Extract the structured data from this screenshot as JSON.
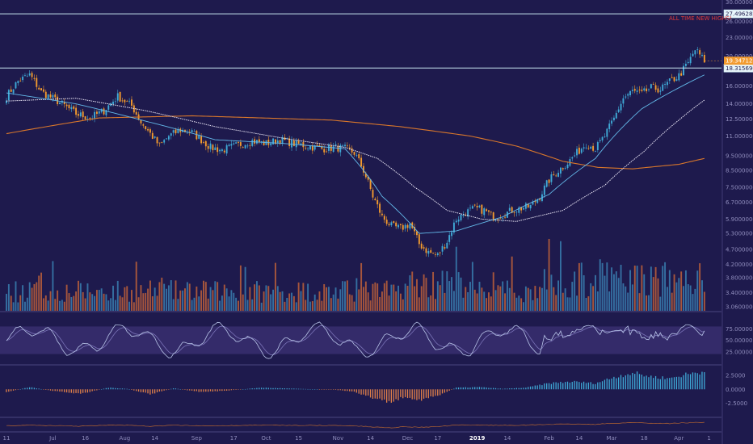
{
  "chart_data": {
    "type": "candlestick",
    "colors": {
      "background": "#1e1a4d",
      "up": "#3fa9d6",
      "down": "#f29a2e",
      "vol_up": "#3a7fb0",
      "vol_down": "#c0613a",
      "sma_fast": "#63b8e8",
      "sma_mid": "#e8e4f4",
      "sma_slow": "#d9772b",
      "level_line": "#c8e6f2",
      "stoch_k": "#b8c4e8",
      "stoch_d": "#7a73b8",
      "stoch_band": "#3a2f72",
      "hist_up": "#3fa9d6",
      "hist_down": "#e0804a"
    },
    "price_axis": {
      "scale": "log",
      "range": [
        2.95,
        30.5
      ],
      "ticks": [
        "30.0000000",
        "26.0000000",
        "23.0000000",
        "20.0000000",
        "16.0000000",
        "14.0000000",
        "12.5000000",
        "11.0000000",
        "9.5000000",
        "8.5000000",
        "7.5000000",
        "6.7000000",
        "5.9000000",
        "5.3000000",
        "4.7000000",
        "4.2000000",
        "3.8000000",
        "3.4000000",
        "3.0600000"
      ],
      "tick_values": [
        30.0,
        26.0,
        23.0,
        20.0,
        16.0,
        14.0,
        12.5,
        11.0,
        9.5,
        8.5,
        7.5,
        6.7,
        5.9,
        5.3,
        4.7,
        4.2,
        3.8,
        3.4,
        3.06
      ]
    },
    "levels": [
      {
        "value": 27.496282,
        "label": "27.4962820",
        "style": "outline"
      },
      {
        "value": 18.3156906,
        "label": "18.3156906",
        "style": "outline"
      }
    ],
    "last_price": {
      "value": 19.3471258,
      "label": "19.3471258"
    },
    "annotation": "ALL TIME NEW HIGHS!",
    "x_axis": {
      "labels": [
        {
          "text": "11",
          "index": 0
        },
        {
          "text": "Jul",
          "index": 20
        },
        {
          "text": "16",
          "index": 34
        },
        {
          "text": "Aug",
          "index": 51
        },
        {
          "text": "14",
          "index": 64
        },
        {
          "text": "Sep",
          "index": 82
        },
        {
          "text": "17",
          "index": 98
        },
        {
          "text": "Oct",
          "index": 112
        },
        {
          "text": "15",
          "index": 126
        },
        {
          "text": "Nov",
          "index": 143
        },
        {
          "text": "14",
          "index": 157
        },
        {
          "text": "Dec",
          "index": 173
        },
        {
          "text": "17",
          "index": 186
        },
        {
          "text": "2019",
          "index": 203,
          "bold": true
        },
        {
          "text": "14",
          "index": 216
        },
        {
          "text": "Feb",
          "index": 234
        },
        {
          "text": "14",
          "index": 247
        },
        {
          "text": "Mar",
          "index": 261
        },
        {
          "text": "18",
          "index": 275
        },
        {
          "text": "Apr",
          "index": 290
        },
        {
          "text": "1",
          "index": 303
        }
      ]
    },
    "close_anchors": [
      [
        0,
        14.8
      ],
      [
        5,
        16.6
      ],
      [
        10,
        17.4
      ],
      [
        15,
        15.3
      ],
      [
        22,
        14.3
      ],
      [
        30,
        13.0
      ],
      [
        36,
        12.6
      ],
      [
        42,
        13.3
      ],
      [
        48,
        14.8
      ],
      [
        54,
        13.8
      ],
      [
        58,
        12.2
      ],
      [
        62,
        11.2
      ],
      [
        66,
        10.2
      ],
      [
        70,
        11.0
      ],
      [
        75,
        11.5
      ],
      [
        80,
        11.3
      ],
      [
        84,
        10.7
      ],
      [
        88,
        10.1
      ],
      [
        93,
        9.9
      ],
      [
        100,
        10.3
      ],
      [
        106,
        10.6
      ],
      [
        112,
        10.4
      ],
      [
        118,
        10.7
      ],
      [
        124,
        10.4
      ],
      [
        130,
        10.2
      ],
      [
        136,
        10.0
      ],
      [
        142,
        10.1
      ],
      [
        146,
        10.0
      ],
      [
        150,
        9.7
      ],
      [
        154,
        8.5
      ],
      [
        158,
        7.0
      ],
      [
        162,
        6.0
      ],
      [
        166,
        5.6
      ],
      [
        170,
        5.5
      ],
      [
        174,
        5.7
      ],
      [
        178,
        4.9
      ],
      [
        182,
        4.6
      ],
      [
        186,
        4.5
      ],
      [
        190,
        5.0
      ],
      [
        194,
        5.9
      ],
      [
        198,
        6.2
      ],
      [
        202,
        6.4
      ],
      [
        206,
        6.3
      ],
      [
        210,
        6.0
      ],
      [
        214,
        6.1
      ],
      [
        218,
        6.3
      ],
      [
        222,
        6.4
      ],
      [
        226,
        6.5
      ],
      [
        230,
        7.0
      ],
      [
        234,
        7.9
      ],
      [
        238,
        8.5
      ],
      [
        242,
        9.0
      ],
      [
        246,
        9.7
      ],
      [
        250,
        10.4
      ],
      [
        254,
        10.0
      ],
      [
        258,
        11.0
      ],
      [
        262,
        12.5
      ],
      [
        266,
        14.6
      ],
      [
        270,
        15.4
      ],
      [
        274,
        15.1
      ],
      [
        278,
        15.8
      ],
      [
        282,
        15.6
      ],
      [
        286,
        16.5
      ],
      [
        290,
        17.3
      ],
      [
        294,
        19.0
      ],
      [
        297,
        21.0
      ],
      [
        299,
        20.2
      ],
      [
        301,
        19.35
      ]
    ],
    "sma_fast_anchors": [
      [
        0,
        15.2
      ],
      [
        30,
        14.0
      ],
      [
        60,
        12.3
      ],
      [
        90,
        10.7
      ],
      [
        120,
        10.4
      ],
      [
        146,
        10.0
      ],
      [
        162,
        7.0
      ],
      [
        178,
        5.3
      ],
      [
        194,
        5.4
      ],
      [
        214,
        6.0
      ],
      [
        234,
        7.1
      ],
      [
        254,
        9.3
      ],
      [
        274,
        13.5
      ],
      [
        290,
        15.8
      ],
      [
        301,
        17.4
      ]
    ],
    "sma_mid_anchors": [
      [
        0,
        14.3
      ],
      [
        30,
        14.6
      ],
      [
        60,
        13.3
      ],
      [
        90,
        11.8
      ],
      [
        120,
        10.8
      ],
      [
        146,
        10.1
      ],
      [
        160,
        9.3
      ],
      [
        176,
        7.5
      ],
      [
        190,
        6.3
      ],
      [
        205,
        5.9
      ],
      [
        220,
        5.8
      ],
      [
        240,
        6.3
      ],
      [
        258,
        7.6
      ],
      [
        275,
        9.8
      ],
      [
        290,
        12.4
      ],
      [
        301,
        14.4
      ]
    ],
    "sma_slow_anchors": [
      [
        0,
        11.2
      ],
      [
        40,
        12.6
      ],
      [
        80,
        12.8
      ],
      [
        110,
        12.6
      ],
      [
        140,
        12.4
      ],
      [
        170,
        11.8
      ],
      [
        200,
        11.0
      ],
      [
        220,
        10.2
      ],
      [
        240,
        9.1
      ],
      [
        255,
        8.7
      ],
      [
        270,
        8.6
      ],
      [
        290,
        8.9
      ],
      [
        301,
        9.3
      ]
    ],
    "stoch_axis": {
      "range": [
        0,
        100
      ],
      "ticks": [
        "75.00000",
        "50.00000",
        "25.00000"
      ],
      "tick_values": [
        75,
        50,
        25
      ],
      "band": [
        20,
        80
      ]
    },
    "macd_axis": {
      "range": [
        -4.8,
        4.0
      ],
      "ticks": [
        "2.5000",
        "0.0000",
        "-2.5000"
      ],
      "tick_values": [
        2.5,
        0.0,
        -2.5
      ]
    },
    "macd_anchors": [
      [
        0,
        -0.5
      ],
      [
        10,
        0.4
      ],
      [
        20,
        -0.3
      ],
      [
        32,
        -0.8
      ],
      [
        44,
        0.3
      ],
      [
        52,
        0.1
      ],
      [
        62,
        -0.9
      ],
      [
        72,
        0.2
      ],
      [
        84,
        -0.5
      ],
      [
        96,
        -0.2
      ],
      [
        110,
        0.3
      ],
      [
        126,
        0.1
      ],
      [
        142,
        -0.1
      ],
      [
        150,
        -0.4
      ],
      [
        158,
        -1.6
      ],
      [
        166,
        -2.3
      ],
      [
        172,
        -1.3
      ],
      [
        178,
        -1.9
      ],
      [
        186,
        -1.2
      ],
      [
        194,
        0.3
      ],
      [
        204,
        0.4
      ],
      [
        214,
        0.1
      ],
      [
        224,
        0.3
      ],
      [
        234,
        1.1
      ],
      [
        244,
        1.4
      ],
      [
        254,
        1.1
      ],
      [
        262,
        2.2
      ],
      [
        270,
        3.0
      ],
      [
        278,
        2.3
      ],
      [
        286,
        2.0
      ],
      [
        294,
        2.8
      ],
      [
        301,
        3.2
      ]
    ]
  }
}
